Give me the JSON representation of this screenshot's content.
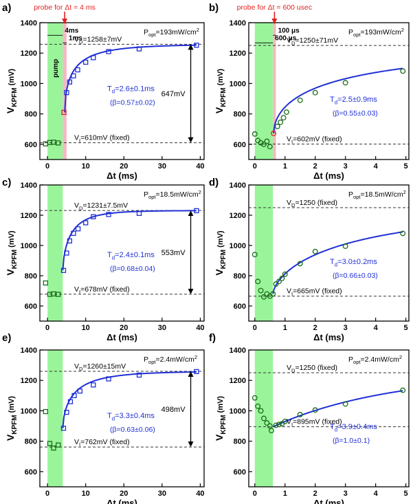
{
  "colors": {
    "axis": "#000000",
    "fit": "#1f2fd6",
    "fit_text": "#1f2fd6",
    "pump": "#9af59a",
    "probe": "#f4b8c4",
    "probe_marker": "#e21f1f",
    "probe_label": "#e21f1f",
    "marker_square": "#1f2fd6",
    "marker_circle": "#1a6b1a",
    "dashed": "#333333"
  },
  "chart_data": [
    {
      "panel": "a)",
      "type": "scatter",
      "marker": "square",
      "xlabel_main": "Δt",
      "xlabel_unit": "(ms)",
      "ylabel_main": "V",
      "ylabel_sub": "KPFM",
      "ylabel_unit": "(mV)",
      "xlim": [
        -2,
        41
      ],
      "ylim": [
        500,
        1400
      ],
      "xticks": [
        0,
        10,
        20,
        30,
        40
      ],
      "xtick_labels": [
        "0",
        "10",
        "20",
        "30",
        "40"
      ],
      "yticks": [
        600,
        800,
        1000,
        1200,
        1400
      ],
      "ytick_labels": [
        "600",
        "800",
        "1000",
        "1200",
        "1400"
      ],
      "pump_band": [
        0,
        4
      ],
      "probe_band": [
        4,
        5
      ],
      "probe_label": "probe for Δt = 4 ms",
      "pump_text": "pump",
      "span_labels": [
        {
          "text": "4ms",
          "x0": 0,
          "x1": 4,
          "y": 1340
        },
        {
          "text": "1ms",
          "x0": 4,
          "x1": 5,
          "y": 1290
        }
      ],
      "power_main": "P",
      "power_sub": "opt",
      "power_value": "=193mW/cm",
      "power_sup": "2",
      "VD_main": "V",
      "VD_sub": "D",
      "VD_value": "=1258±7mV",
      "VD": 1258,
      "VI_main": "V",
      "VI_sub": "I",
      "VI_value": "=610mV (fixed)",
      "VI": 610,
      "tau_main": "T",
      "tau_sub": "d",
      "tau_value": "=2.6±0.1ms",
      "beta": "(β=0.57±0.02)",
      "amplitude": "647mV",
      "arrow_x": 37.5,
      "fit": {
        "x0": 4.5,
        "x1": 39,
        "VD": 1258,
        "V0": 810,
        "tau": 2.6,
        "beta": 0.57
      },
      "points_x": [
        -0.5,
        0.6,
        1.6,
        2.8
      ],
      "points_y": [
        603,
        612,
        614,
        609
      ],
      "points2_x": [
        5.0,
        5.8,
        6.8,
        7.9,
        10,
        12,
        16,
        24,
        39
      ],
      "points2_y": [
        940,
        1010,
        1050,
        1090,
        1140,
        1170,
        1210,
        1228,
        1252
      ],
      "probe_point": [
        4.3,
        810
      ]
    },
    {
      "panel": "b)",
      "type": "scatter",
      "marker": "circle",
      "xlabel_main": "Δt",
      "xlabel_unit": "(ms)",
      "ylabel_main": "V",
      "ylabel_sub": "KPFM",
      "ylabel_unit": "(mV)",
      "xlim": [
        -0.2,
        5.1
      ],
      "ylim": [
        500,
        1400
      ],
      "xticks": [
        0,
        1,
        2,
        3,
        4,
        5
      ],
      "xtick_labels": [
        "0",
        "1",
        "2",
        "3",
        "4",
        "5"
      ],
      "yticks": [
        600,
        800,
        1000,
        1200,
        1400
      ],
      "ytick_labels": [
        "600",
        "800",
        "1000",
        "1200",
        "1400"
      ],
      "pump_band": [
        0,
        0.6
      ],
      "probe_band": [
        0.6,
        0.7
      ],
      "probe_label": "probe for Δt = 600 usec",
      "pump_text": "",
      "span_labels": [
        {
          "text": "600 μs",
          "x0": 0,
          "x1": 0.6,
          "y": 1290
        },
        {
          "text": "100 μs",
          "x0": 0.6,
          "x1": 0.7,
          "y": 1340
        }
      ],
      "power_main": "P",
      "power_sub": "opt",
      "power_value": "=193mW/cm",
      "power_sup": "2",
      "VD_main": "V",
      "VD_sub": "D",
      "VD_value": "=1250±71mV",
      "VD": 1250,
      "VI_main": "V",
      "VI_sub": "I",
      "VI_value": "=602mV (fixed)",
      "VI": 602,
      "tau_main": "T",
      "tau_sub": "d",
      "tau_value": "=2.5±0.9ms",
      "beta": "(β=0.55±0.03)",
      "amplitude": "",
      "arrow_x": null,
      "fit": {
        "x0": 0.62,
        "x1": 4.9,
        "VD": 1250,
        "V0": 672,
        "tau": 2.5,
        "beta": 0.55
      },
      "points_x": [
        0.0,
        0.1,
        0.2,
        0.3,
        0.4,
        0.5
      ],
      "points_y": [
        668,
        625,
        610,
        600,
        620,
        585
      ],
      "points2_x": [
        0.75,
        0.85,
        0.95,
        1.05,
        1.5,
        2.0,
        3.0,
        4.9
      ],
      "points2_y": [
        718,
        745,
        775,
        812,
        890,
        940,
        1005,
        1082
      ],
      "probe_point": [
        0.62,
        672
      ]
    },
    {
      "panel": "c)",
      "type": "scatter",
      "marker": "square",
      "xlabel_main": "Δt",
      "xlabel_unit": "(ms)",
      "ylabel_main": "V",
      "ylabel_sub": "KPFM",
      "ylabel_unit": "(mV)",
      "xlim": [
        -2,
        41
      ],
      "ylim": [
        500,
        1400
      ],
      "xticks": [
        0,
        10,
        20,
        30,
        40
      ],
      "xtick_labels": [
        "0",
        "10",
        "20",
        "30",
        "40"
      ],
      "yticks": [
        600,
        800,
        1000,
        1200,
        1400
      ],
      "ytick_labels": [
        "600",
        "800",
        "1000",
        "1200",
        "1400"
      ],
      "pump_band": [
        0,
        4
      ],
      "probe_band": null,
      "probe_label": "",
      "pump_text": "",
      "span_labels": [],
      "power_main": "P",
      "power_sub": "opt",
      "power_value": "=18.5mW/cm",
      "power_sup": "2",
      "VD_main": "V",
      "VD_sub": "D",
      "VD_value": "=1231±7.5mV",
      "VD": 1231,
      "VI_main": "V",
      "VI_sub": "I",
      "VI_value": "=678mV (fixed)",
      "VI": 678,
      "tau_main": "T",
      "tau_sub": "d",
      "tau_value": "=2.4±0.1ms",
      "beta": "(β=0.68±0.04)",
      "amplitude": "553mV",
      "arrow_x": 37.5,
      "fit": {
        "x0": 4,
        "x1": 39,
        "VD": 1231,
        "V0": 835,
        "tau": 2.4,
        "beta": 0.68
      },
      "points_x": [
        -0.5,
        0.6,
        1.6,
        2.8
      ],
      "points_y": [
        752,
        677,
        680,
        677
      ],
      "points2_x": [
        4.2,
        5.0,
        5.8,
        6.8,
        8,
        10,
        12,
        16,
        24,
        39
      ],
      "points2_y": [
        835,
        950,
        1030,
        1080,
        1110,
        1150,
        1190,
        1205,
        1212,
        1230
      ],
      "probe_point": null
    },
    {
      "panel": "d)",
      "type": "scatter",
      "marker": "circle",
      "xlabel_main": "Δt",
      "xlabel_unit": "(ms)",
      "ylabel_main": "V",
      "ylabel_sub": "KPFM",
      "ylabel_unit": "(mV)",
      "xlim": [
        -0.2,
        5.1
      ],
      "ylim": [
        500,
        1400
      ],
      "xticks": [
        0,
        1,
        2,
        3,
        4,
        5
      ],
      "xtick_labels": [
        "0",
        "1",
        "2",
        "3",
        "4",
        "5"
      ],
      "yticks": [
        600,
        800,
        1000,
        1200,
        1400
      ],
      "ytick_labels": [
        "600",
        "800",
        "1000",
        "1200",
        "1400"
      ],
      "pump_band": [
        0,
        0.6
      ],
      "probe_band": null,
      "probe_label": "",
      "pump_text": "",
      "span_labels": [],
      "power_main": "P",
      "power_sub": "opt",
      "power_value": "=18.5mW/cm",
      "power_sup": "2",
      "VD_main": "V",
      "VD_sub": "D",
      "VD_value": "=1250 (fixed)",
      "VD": 1250,
      "VI_main": "V",
      "VI_sub": "I",
      "VI_value": "=665mV (fixed)",
      "VI": 665,
      "tau_main": "T",
      "tau_sub": "d",
      "tau_value": "=3.0±0.2ms",
      "beta": "(β=0.66±0.03)",
      "amplitude": "",
      "arrow_x": null,
      "fit": {
        "x0": 0.6,
        "x1": 4.9,
        "VD": 1250,
        "V0": 680,
        "tau": 3.0,
        "beta": 0.66
      },
      "points_x": [
        0.0,
        0.1,
        0.2,
        0.3,
        0.4,
        0.5,
        0.6
      ],
      "points_y": [
        940,
        762,
        702,
        660,
        680,
        665,
        680
      ],
      "points2_x": [
        0.7,
        0.8,
        0.9,
        1.0,
        1.5,
        2.0,
        3.0,
        4.9
      ],
      "points2_y": [
        745,
        762,
        782,
        810,
        880,
        960,
        995,
        1080
      ],
      "probe_point": null
    },
    {
      "panel": "e)",
      "type": "scatter",
      "marker": "square",
      "xlabel_main": "Δt",
      "xlabel_unit": "(ms)",
      "ylabel_main": "V",
      "ylabel_sub": "KPFM",
      "ylabel_unit": "(mV)",
      "xlim": [
        -2,
        41
      ],
      "ylim": [
        500,
        1400
      ],
      "xticks": [
        0,
        10,
        20,
        30,
        40
      ],
      "xtick_labels": [
        "0",
        "10",
        "20",
        "30",
        "40"
      ],
      "yticks": [
        600,
        800,
        1000,
        1200,
        1400
      ],
      "ytick_labels": [
        "600",
        "800",
        "1000",
        "1200",
        "1400"
      ],
      "pump_band": [
        0,
        4
      ],
      "probe_band": null,
      "probe_label": "",
      "pump_text": "",
      "span_labels": [],
      "power_main": "P",
      "power_sub": "opt",
      "power_value": "=2.4mW/cm",
      "power_sup": "2",
      "VD_main": "V",
      "VD_sub": "D",
      "VD_value": "=1260±15mV",
      "VD": 1260,
      "VI_main": "V",
      "VI_sub": "I",
      "VI_value": "=762mV (fixed)",
      "VI": 762,
      "tau_main": "T",
      "tau_sub": "d",
      "tau_value": "=3.3±0.4ms",
      "beta": "(β=0.63±0.06)",
      "amplitude": "498mV",
      "arrow_x": 37.5,
      "fit": {
        "x0": 4,
        "x1": 39,
        "VD": 1260,
        "V0": 885,
        "tau": 3.3,
        "beta": 0.63
      },
      "points_x": [
        -0.5,
        0.6,
        1.6,
        2.8
      ],
      "points_y": [
        995,
        785,
        755,
        775
      ],
      "points2_x": [
        4.2,
        5.0,
        6.0,
        7.0,
        8.5,
        12,
        16,
        24,
        39
      ],
      "points2_y": [
        885,
        990,
        1060,
        1100,
        1130,
        1170,
        1210,
        1235,
        1258
      ],
      "probe_point": null
    },
    {
      "panel": "f)",
      "type": "scatter",
      "marker": "circle",
      "xlabel_main": "Δt",
      "xlabel_unit": "(ms)",
      "ylabel_main": "V",
      "ylabel_sub": "KPFM",
      "ylabel_unit": "(mV)",
      "xlim": [
        -0.2,
        5.1
      ],
      "ylim": [
        500,
        1400
      ],
      "xticks": [
        0,
        1,
        2,
        3,
        4,
        5
      ],
      "xtick_labels": [
        "0",
        "1",
        "2",
        "3",
        "4",
        "5"
      ],
      "yticks": [
        600,
        800,
        1000,
        1200,
        1400
      ],
      "ytick_labels": [
        "600",
        "800",
        "1000",
        "1200",
        "1400"
      ],
      "pump_band": [
        0,
        0.6
      ],
      "probe_band": null,
      "probe_label": "",
      "pump_text": "",
      "span_labels": [],
      "power_main": "P",
      "power_sub": "opt",
      "power_value": "=2.4mW/cm",
      "power_sup": "2",
      "VD_main": "V",
      "VD_sub": "D",
      "VD_value": "=1250 (fixed)",
      "VD": 1250,
      "VI_main": "V",
      "VI_sub": "I",
      "VI_value": "=895mV (fixed)",
      "VI": 895,
      "tau_main": "T",
      "tau_sub": "d",
      "tau_value": "=3.9±0.4ms",
      "beta": "(β=1.0±0.1)",
      "amplitude": "",
      "arrow_x": null,
      "fit": {
        "x0": 0.6,
        "x1": 4.9,
        "VD": 1250,
        "V0": 895,
        "tau": 3.9,
        "beta": 1.0
      },
      "points_x": [
        0.0,
        0.1,
        0.2,
        0.3,
        0.4,
        0.5,
        0.55
      ],
      "points_y": [
        1085,
        1030,
        1000,
        950,
        920,
        900,
        870
      ],
      "points2_x": [
        0.7,
        0.8,
        0.9,
        1.0,
        1.5,
        2.0,
        3.0,
        4.9
      ],
      "points2_y": [
        905,
        910,
        915,
        930,
        975,
        1005,
        1045,
        1135
      ],
      "probe_point": null
    }
  ]
}
